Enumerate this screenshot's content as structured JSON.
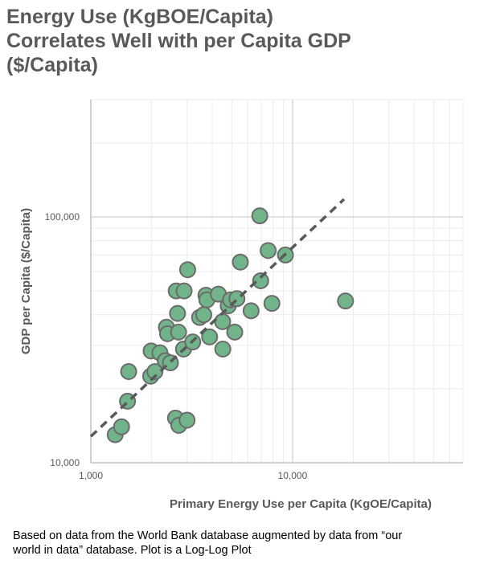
{
  "title_lines": [
    "Energy Use (KgBOE/Capita)",
    "Correlates Well with per Capita GDP",
    "($/Capita)"
  ],
  "note_lines": [
    "Based on data from the World Bank database augmented by data from “our",
    "world in data” database. Plot is a Log-Log Plot"
  ],
  "colors": {
    "marker_fill": "#72b48a",
    "marker_stroke": "#6b6b6b",
    "trendline": "#595959",
    "grid_major": "#d0d0d0",
    "grid_minor": "#ececec",
    "text": "#595959"
  },
  "chart_data": {
    "type": "scatter",
    "scale": "log-log",
    "xlabel": "Primary Energy Use per Capita (KgOE/Capita)",
    "ylabel": "GDP per Capita ($/Capita)",
    "xlim": [
      1000,
      70000
    ],
    "ylim": [
      10000,
      300000
    ],
    "x_ticks": [
      {
        "value": 1000,
        "label": "1,000"
      },
      {
        "value": 10000,
        "label": "10,000"
      }
    ],
    "y_ticks": [
      {
        "value": 10000,
        "label": "10,000"
      },
      {
        "value": 100000,
        "label": "100,000"
      }
    ],
    "grid": true,
    "trendline": {
      "style": "dashed",
      "from": [
        1000,
        12800
      ],
      "to": [
        18000,
        118000
      ]
    },
    "points": [
      {
        "x": 1320,
        "y": 13000
      },
      {
        "x": 1420,
        "y": 14000
      },
      {
        "x": 1520,
        "y": 17800
      },
      {
        "x": 1540,
        "y": 23500
      },
      {
        "x": 1980,
        "y": 22500
      },
      {
        "x": 1990,
        "y": 28500
      },
      {
        "x": 2080,
        "y": 23500
      },
      {
        "x": 2200,
        "y": 28000
      },
      {
        "x": 2340,
        "y": 26000
      },
      {
        "x": 2370,
        "y": 35600
      },
      {
        "x": 2400,
        "y": 33500
      },
      {
        "x": 2480,
        "y": 25500
      },
      {
        "x": 2630,
        "y": 15200
      },
      {
        "x": 2650,
        "y": 50000
      },
      {
        "x": 2690,
        "y": 40500
      },
      {
        "x": 2720,
        "y": 34000
      },
      {
        "x": 2730,
        "y": 14200
      },
      {
        "x": 2880,
        "y": 29000
      },
      {
        "x": 2900,
        "y": 50000
      },
      {
        "x": 3000,
        "y": 14900
      },
      {
        "x": 3020,
        "y": 61000
      },
      {
        "x": 3200,
        "y": 31000
      },
      {
        "x": 3460,
        "y": 39000
      },
      {
        "x": 3630,
        "y": 40000
      },
      {
        "x": 3720,
        "y": 48000
      },
      {
        "x": 3760,
        "y": 46000
      },
      {
        "x": 3880,
        "y": 32500
      },
      {
        "x": 4290,
        "y": 48500
      },
      {
        "x": 4500,
        "y": 37500
      },
      {
        "x": 4510,
        "y": 29000
      },
      {
        "x": 4800,
        "y": 43500
      },
      {
        "x": 4930,
        "y": 46000
      },
      {
        "x": 5170,
        "y": 34000
      },
      {
        "x": 5300,
        "y": 46500
      },
      {
        "x": 5510,
        "y": 65500
      },
      {
        "x": 6230,
        "y": 41500
      },
      {
        "x": 6880,
        "y": 101000
      },
      {
        "x": 6950,
        "y": 55000
      },
      {
        "x": 7570,
        "y": 73000
      },
      {
        "x": 7900,
        "y": 44500
      },
      {
        "x": 9220,
        "y": 70000
      },
      {
        "x": 18300,
        "y": 45500
      }
    ]
  },
  "axis": {
    "x_title": "Primary Energy Use per Capita (KgOE/Capita)",
    "y_title": "GDP per Capita ($/Capita)"
  }
}
